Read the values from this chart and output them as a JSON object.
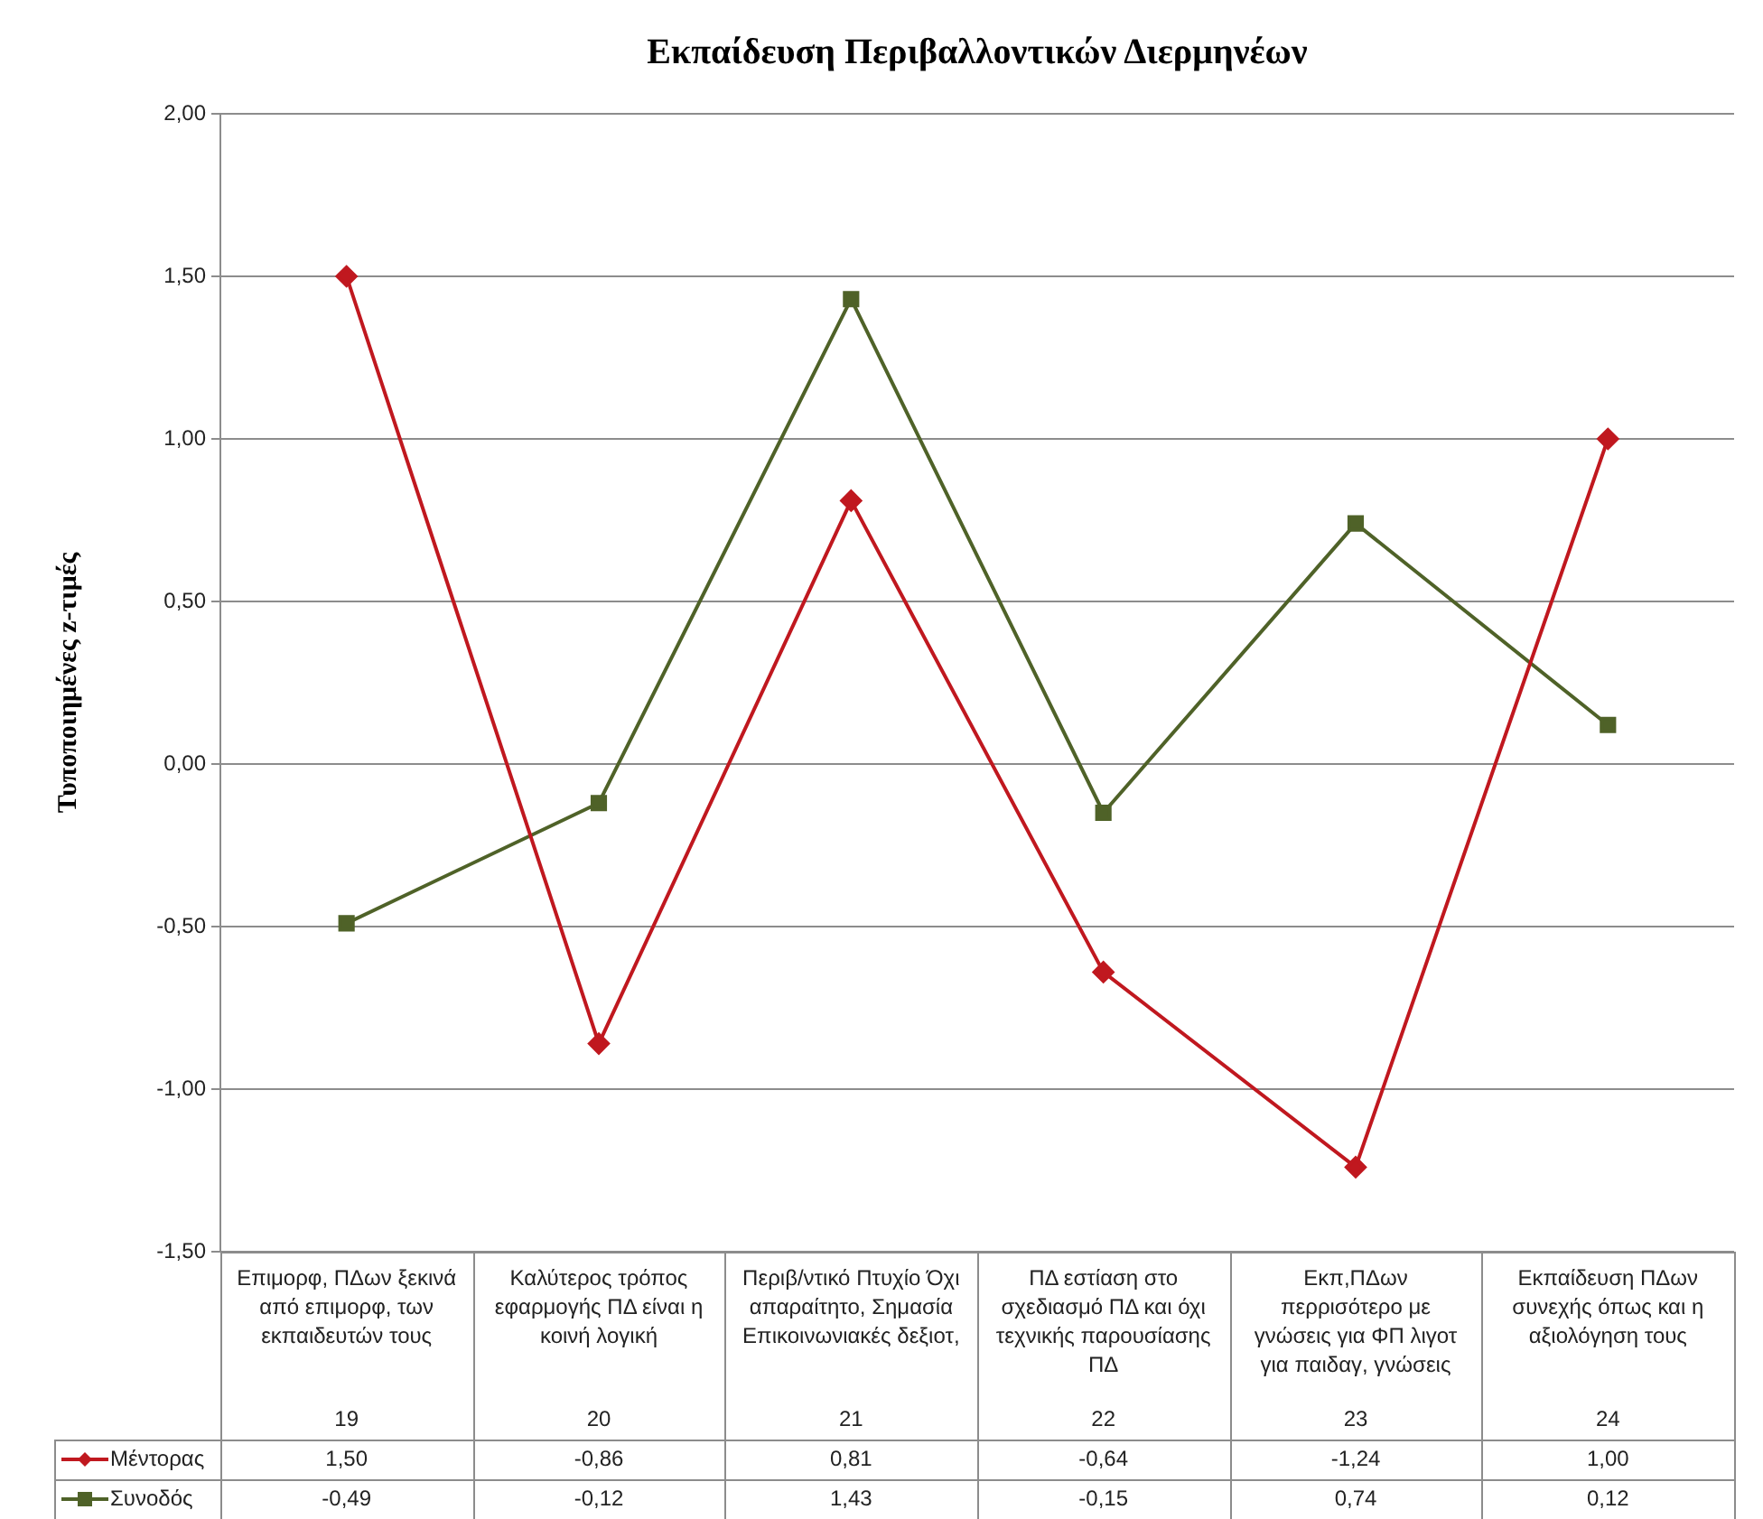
{
  "chart_data": {
    "type": "line",
    "title": "Εκπαίδευση Περιβαλλοντικών Διερμηνέων",
    "ylabel": "Τυποποιημένες z-τιμές",
    "categories": [
      "Επιμορφ, ΠΔων ξεκινά από επιμορφ, των εκπαιδευτών τους\n19",
      "Καλύτερος τρόπος εφαρμογής ΠΔ είναι η κοινή λογική\n20",
      "Περιβ/ντικό Πτυχίο Όχι απαραίτητο, Σημασία Επικοινωνιακές δεξιοτ,\n21",
      "ΠΔ εστίαση στο σχεδιασμό ΠΔ και όχι τεχνικής παρουσίασης ΠΔ\n22",
      "Εκπ,ΠΔων περρισότερο με γνώσεις για ΦΠ λιγοτ για παιδαγ, γνώσεις\n23",
      "Εκπαίδευση ΠΔων συνεχής όπως και η αξιολόγηση τους\n24"
    ],
    "series": [
      {
        "name": "Μέντορας",
        "color": "#c0181f",
        "marker": "diamond",
        "values": [
          1.5,
          -0.86,
          0.81,
          -0.64,
          -1.24,
          1.0
        ],
        "value_labels": [
          "1,50",
          "-0,86",
          "0,81",
          "-0,64",
          "-1,24",
          "1,00"
        ]
      },
      {
        "name": "Συνοδός",
        "color": "#4f6228",
        "marker": "square",
        "values": [
          -0.49,
          -0.12,
          1.43,
          -0.15,
          0.74,
          0.12
        ],
        "value_labels": [
          "-0,49",
          "-0,12",
          "1,43",
          "-0,15",
          "0,74",
          "0,12"
        ]
      }
    ],
    "ylim": [
      -1.5,
      2
    ],
    "yticks": [
      {
        "value": -1.5,
        "label": "-1,50"
      },
      {
        "value": -1,
        "label": "-1,00"
      },
      {
        "value": -0.5,
        "label": "-0,50"
      },
      {
        "value": 0,
        "label": "0,00"
      },
      {
        "value": 0.5,
        "label": "0,50"
      },
      {
        "value": 1,
        "label": "1,00"
      },
      {
        "value": 1.5,
        "label": "1,50"
      },
      {
        "value": 2,
        "label": "2,00"
      }
    ],
    "grid": "y",
    "legend": "bottom left",
    "line_style": "solid"
  }
}
